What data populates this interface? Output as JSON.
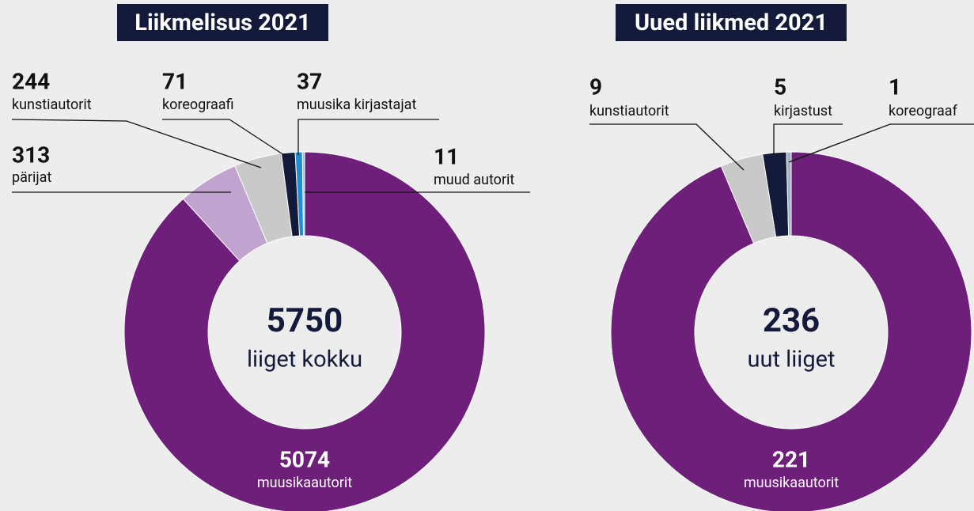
{
  "chart_data": [
    {
      "type": "pie",
      "title": "Liikmelisus 2021",
      "center_value": 5750,
      "center_label": "liiget kokku",
      "categories": [
        "muusikaautorit",
        "pärijat",
        "kunstiautorit",
        "koreograafi",
        "muusika kirjastajat",
        "muud autorit"
      ],
      "values": [
        5074,
        313,
        244,
        71,
        37,
        11
      ],
      "colors": [
        "#6d1f7a",
        "#c0a3cf",
        "#c9c9c9",
        "#141a3a",
        "#1f8fd1",
        "#8ccbe8"
      ]
    },
    {
      "type": "pie",
      "title": "Uued liikmed 2021",
      "center_value": 236,
      "center_label": "uut liiget",
      "categories": [
        "muusikaautorit",
        "kunstiautorit",
        "kirjastust",
        "koreograaf"
      ],
      "values": [
        221,
        9,
        5,
        1
      ],
      "colors": [
        "#6d1f7a",
        "#c9c9c9",
        "#141a3a",
        "#aab0c4"
      ]
    }
  ]
}
